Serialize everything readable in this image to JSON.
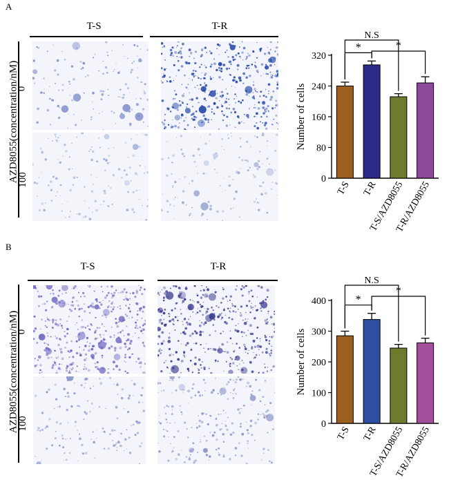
{
  "figure": {
    "panels": [
      {
        "letter": "A",
        "col_labels": [
          "T-S",
          "T-R"
        ],
        "axis_label": "AZD8055(concentration/nM)",
        "row_labels": [
          "0",
          "100"
        ],
        "micrographs": [
          {
            "condition": "T-S 0 nM",
            "stain_color": "#7f8dcc",
            "density": "low"
          },
          {
            "condition": "T-R 0 nM",
            "stain_color": "#2347a8",
            "density": "high"
          },
          {
            "condition": "T-S 100 nM",
            "stain_color": "#9fb2d8",
            "density": "low"
          },
          {
            "condition": "T-R 100 nM",
            "stain_color": "#9aa9cf",
            "density": "low"
          }
        ]
      },
      {
        "letter": "B",
        "col_labels": [
          "T-S",
          "T-R"
        ],
        "axis_label": "AZD8055(concentration/nM)",
        "row_labels": [
          "0",
          "100"
        ],
        "micrographs": [
          {
            "condition": "T-S 0 nM",
            "stain_color": "#6f68c0",
            "density": "high"
          },
          {
            "condition": "T-R 0 nM",
            "stain_color": "#3a3c8f",
            "density": "high"
          },
          {
            "condition": "T-S 100 nM",
            "stain_color": "#8a95c8",
            "density": "low"
          },
          {
            "condition": "T-R 100 nM",
            "stain_color": "#8a95c8",
            "density": "medium"
          }
        ]
      }
    ]
  },
  "chart_data": [
    {
      "type": "bar",
      "categories": [
        "T-S",
        "T-R",
        "T-S/AZD8055",
        "T-R/AZD8055"
      ],
      "values": [
        240,
        295,
        212,
        248
      ],
      "errors": [
        10,
        10,
        8,
        16
      ],
      "colors": [
        "#9b5f1f",
        "#2e2a8c",
        "#6e7b2e",
        "#8e4a9a"
      ],
      "ylabel": "Number of cells",
      "ylim": [
        0,
        320
      ],
      "yticks": [
        0,
        80,
        160,
        240,
        320
      ],
      "annotations": [
        {
          "label": "N.S",
          "pair": [
            0,
            2
          ]
        },
        {
          "label": "*",
          "pair": [
            0,
            1
          ]
        },
        {
          "label": "*",
          "pair": [
            1,
            3
          ]
        }
      ]
    },
    {
      "type": "bar",
      "categories": [
        "T-S",
        "T-R",
        "T-S/AZD8055",
        "T-R/AZD8055"
      ],
      "values": [
        285,
        338,
        245,
        262
      ],
      "errors": [
        15,
        20,
        12,
        15
      ],
      "colors": [
        "#9b5f1f",
        "#2e4fa3",
        "#6e7b2e",
        "#a3509c"
      ],
      "ylabel": "Number of cells",
      "ylim": [
        0,
        400
      ],
      "yticks": [
        0,
        100,
        200,
        300,
        400
      ],
      "annotations": [
        {
          "label": "N.S",
          "pair": [
            0,
            2
          ]
        },
        {
          "label": "*",
          "pair": [
            0,
            1
          ]
        },
        {
          "label": "*",
          "pair": [
            1,
            3
          ]
        }
      ]
    }
  ]
}
